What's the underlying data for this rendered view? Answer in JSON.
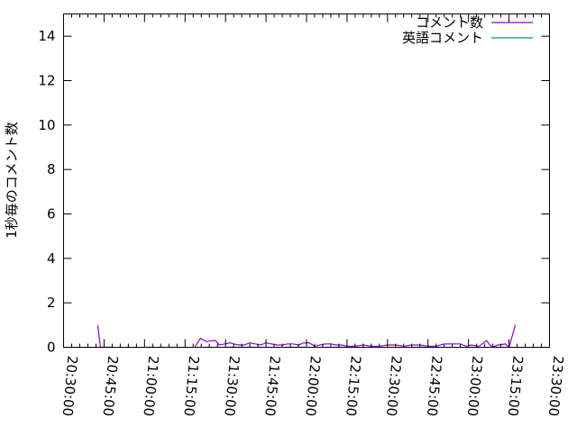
{
  "chart_data": {
    "type": "line",
    "title": "",
    "xlabel": "",
    "ylabel": "1秒毎のコメント数",
    "xlim": [
      "20:30:00",
      "23:30:00"
    ],
    "ylim": [
      0,
      15
    ],
    "x_ticks": [
      "20:30:00",
      "20:45:00",
      "21:00:00",
      "21:15:00",
      "21:30:00",
      "21:45:00",
      "22:00:00",
      "22:15:00",
      "22:30:00",
      "22:45:00",
      "23:00:00",
      "23:15:00",
      "23:30:00"
    ],
    "y_ticks": [
      0,
      2,
      4,
      6,
      8,
      10,
      12,
      14
    ],
    "grid": false,
    "legend_position": "top-right",
    "series": [
      {
        "name": "コメント数",
        "color": "#9400d3",
        "points": [
          [
            "20:42:40",
            1
          ],
          [
            "20:43:40",
            0
          ],
          [
            "20:48:20",
            0
          ],
          null,
          [
            "21:00:40",
            0
          ],
          [
            "21:03:40",
            0
          ],
          null,
          [
            "21:05:40",
            0
          ],
          [
            "21:07:00",
            0
          ],
          null,
          [
            "21:09:20",
            0
          ],
          [
            "21:10:00",
            0
          ],
          null,
          [
            "21:18:40",
            0
          ],
          [
            "21:20:40",
            0.4
          ],
          [
            "21:23:00",
            0.25
          ],
          [
            "21:25:00",
            0.3
          ],
          [
            "21:26:20",
            0.3
          ],
          [
            "21:27:40",
            0.1
          ],
          [
            "21:29:40",
            0.15
          ],
          [
            "21:31:40",
            0.2
          ],
          [
            "21:33:00",
            0.15
          ],
          [
            "21:35:00",
            0.1
          ],
          [
            "21:37:00",
            0.1
          ],
          [
            "21:39:00",
            0.2
          ],
          [
            "21:41:00",
            0.15
          ],
          [
            "21:43:00",
            0.1
          ],
          [
            "21:45:00",
            0.2
          ],
          [
            "21:47:00",
            0.15
          ],
          [
            "21:49:00",
            0.1
          ],
          [
            "21:51:00",
            0.1
          ],
          [
            "21:53:00",
            0.15
          ],
          [
            "21:55:00",
            0.15
          ],
          [
            "21:57:00",
            0.1
          ],
          [
            "21:59:00",
            0.2
          ],
          [
            "22:01:00",
            0.2
          ],
          [
            "22:03:00",
            0.05
          ],
          [
            "22:05:00",
            0.1
          ],
          [
            "22:07:00",
            0.15
          ],
          [
            "22:09:00",
            0.15
          ],
          [
            "22:11:00",
            0.1
          ],
          [
            "22:13:00",
            0.1
          ],
          [
            "22:15:00",
            0.05
          ],
          [
            "22:18:00",
            0.05
          ],
          [
            "22:21:00",
            0.1
          ],
          [
            "22:24:00",
            0.05
          ],
          [
            "22:27:00",
            0.05
          ],
          [
            "22:30:00",
            0.1
          ],
          [
            "22:33:00",
            0.1
          ],
          [
            "22:36:00",
            0.05
          ],
          [
            "22:39:00",
            0.1
          ],
          [
            "22:42:00",
            0.1
          ],
          [
            "22:45:00",
            0.05
          ],
          [
            "22:48:00",
            0.05
          ],
          [
            "22:51:00",
            0.15
          ],
          [
            "22:54:00",
            0.15
          ],
          [
            "22:57:00",
            0.15
          ],
          [
            "22:59:00",
            0.05
          ],
          [
            "23:01:00",
            0.1
          ],
          [
            "23:04:00",
            0.05
          ],
          [
            "23:06:40",
            0.3
          ],
          [
            "23:08:40",
            0
          ],
          [
            "23:11:00",
            0.1
          ],
          [
            "23:13:40",
            0.15
          ],
          [
            "23:15:00",
            0
          ],
          [
            "23:17:20",
            1
          ]
        ]
      },
      {
        "name": "英語コメント",
        "color": "#009e73",
        "points": [
          [
            "20:44:00",
            0
          ],
          [
            "20:48:00",
            0
          ],
          null,
          [
            "21:22:00",
            0
          ],
          [
            "21:25:00",
            0
          ],
          null,
          [
            "21:31:00",
            0
          ],
          [
            "21:41:00",
            0
          ],
          null,
          [
            "21:52:00",
            0
          ],
          [
            "22:00:00",
            0
          ],
          null,
          [
            "22:10:00",
            0
          ],
          [
            "22:18:00",
            0
          ],
          null,
          [
            "22:40:00",
            0
          ],
          [
            "22:50:00",
            0
          ],
          null,
          [
            "23:00:00",
            0
          ],
          [
            "23:04:00",
            0
          ]
        ]
      }
    ]
  }
}
